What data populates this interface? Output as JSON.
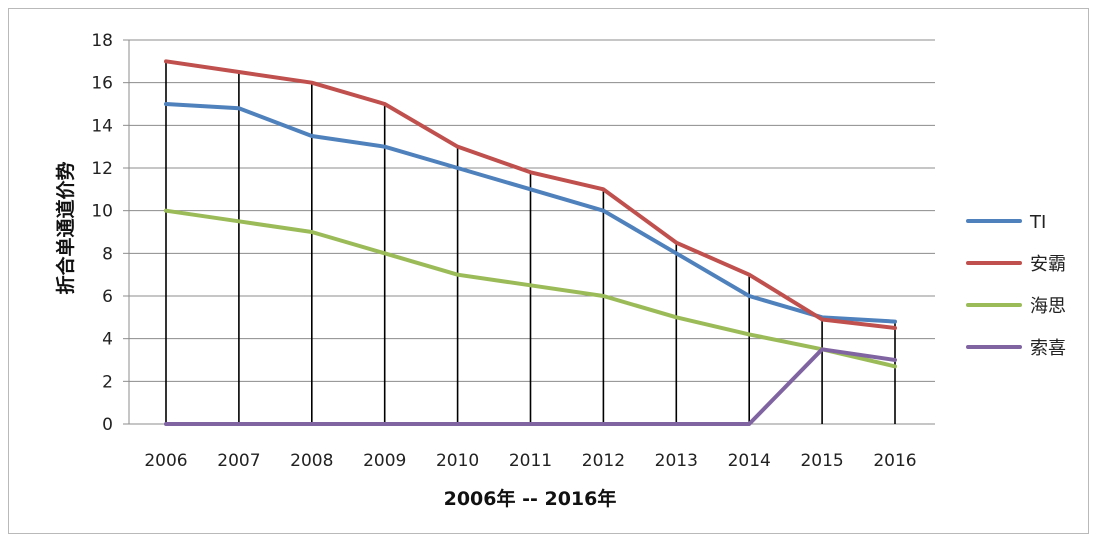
{
  "chart_data": {
    "type": "line",
    "title": "",
    "xlabel": "2006年 -- 2016年",
    "ylabel": "折合单通道价势",
    "categories": [
      "2006",
      "2007",
      "2008",
      "2009",
      "2010",
      "2011",
      "2012",
      "2013",
      "2014",
      "2015",
      "2016"
    ],
    "ylim": [
      0,
      18
    ],
    "yticks": [
      0,
      2,
      4,
      6,
      8,
      10,
      12,
      14,
      16,
      18
    ],
    "grid": true,
    "vertical_drop_lines": true,
    "legend_position": "right",
    "series": [
      {
        "name": "TI",
        "color": "#4f81bd",
        "values": [
          15,
          14.8,
          13.5,
          13,
          12,
          11,
          10,
          8,
          6,
          5,
          4.8
        ]
      },
      {
        "name": "安霸",
        "color": "#c0504d",
        "values": [
          17,
          16.5,
          16,
          15,
          13,
          11.8,
          11,
          8.5,
          7,
          4.9,
          4.5
        ]
      },
      {
        "name": "海思",
        "color": "#9bbb59",
        "values": [
          10,
          9.5,
          9,
          8,
          7,
          6.5,
          6,
          5,
          4.2,
          3.5,
          2.7
        ]
      },
      {
        "name": "索喜",
        "color": "#8064a2",
        "values": [
          0,
          0,
          0,
          0,
          0,
          0,
          0,
          0,
          0,
          3.5,
          3
        ]
      }
    ]
  }
}
